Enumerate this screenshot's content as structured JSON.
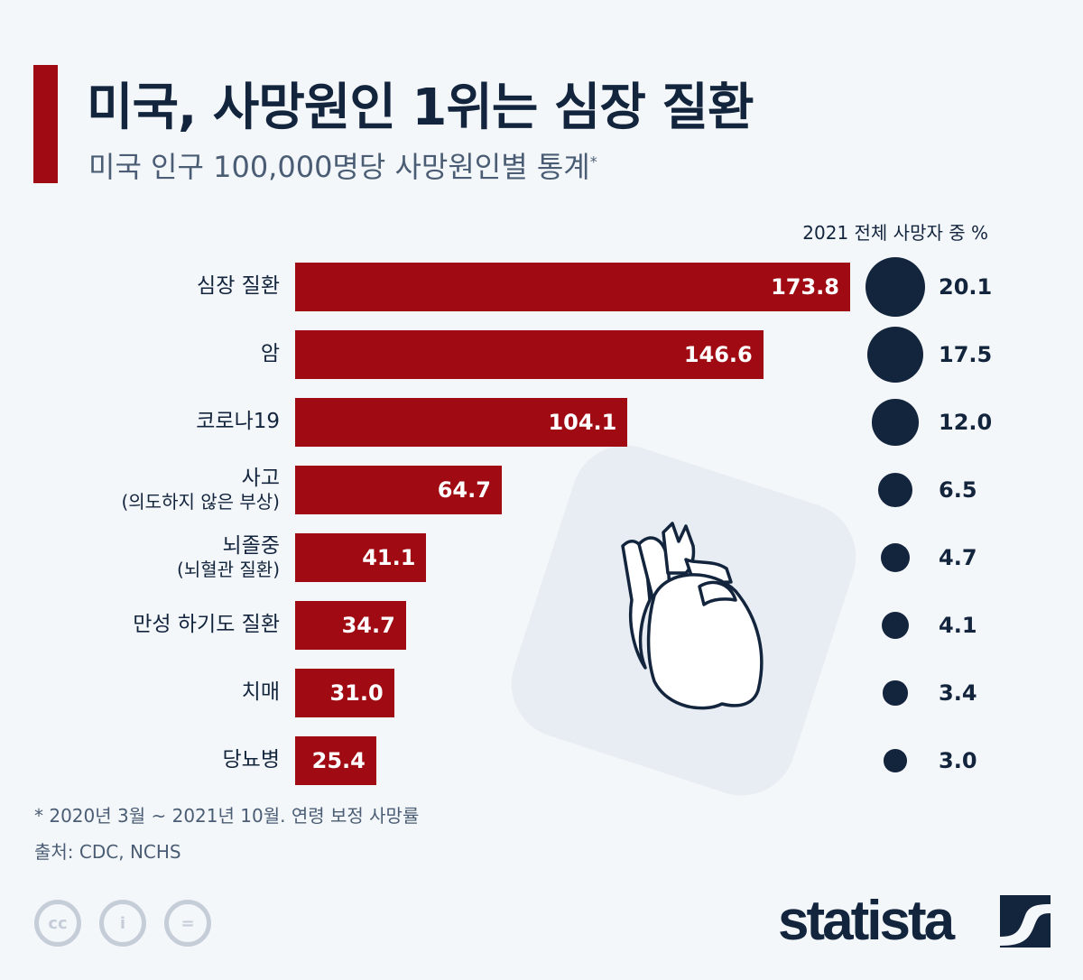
{
  "header": {
    "title": "미국, 사망원인 1위는 심장 질환",
    "subtitle": "미국 인구 100,000명당 사망원인별 통계",
    "subtitle_mark": "*"
  },
  "chart_data": {
    "type": "bar",
    "orientation": "horizontal",
    "title": "미국, 사망원인 1위는 심장 질환",
    "categories": [
      {
        "label": "심장 질환",
        "sub": ""
      },
      {
        "label": "암",
        "sub": ""
      },
      {
        "label": "코로나19",
        "sub": ""
      },
      {
        "label": "사고",
        "sub": "(의도하지 않은 부상)"
      },
      {
        "label": "뇌졸중",
        "sub": "(뇌혈관 질환)"
      },
      {
        "label": "만성 하기도 질환",
        "sub": ""
      },
      {
        "label": "치매",
        "sub": ""
      },
      {
        "label": "당뇨병",
        "sub": ""
      }
    ],
    "series": [
      {
        "name": "Deaths per 100,000",
        "values": [
          "173.8",
          "146.6",
          "104.1",
          "64.7",
          "41.1",
          "34.7",
          "31.0",
          "25.4"
        ]
      },
      {
        "name": "2021 전체 사망자 중 %",
        "values": [
          "20.1",
          "17.5",
          "12.0",
          "6.5",
          "4.7",
          "4.1",
          "3.4",
          "3.0"
        ]
      }
    ],
    "pct_header": "2021 전체 사망자 중 %",
    "colors": {
      "bar": "#a00a12",
      "dot": "#13243d"
    }
  },
  "footer": {
    "note": "* 2020년 3월 ~ 2021년 10월. 연령 보정 사망률",
    "source": "출처: CDC, NCHS",
    "logo": "statista",
    "cc_icons": [
      "cc",
      "i",
      "="
    ]
  }
}
